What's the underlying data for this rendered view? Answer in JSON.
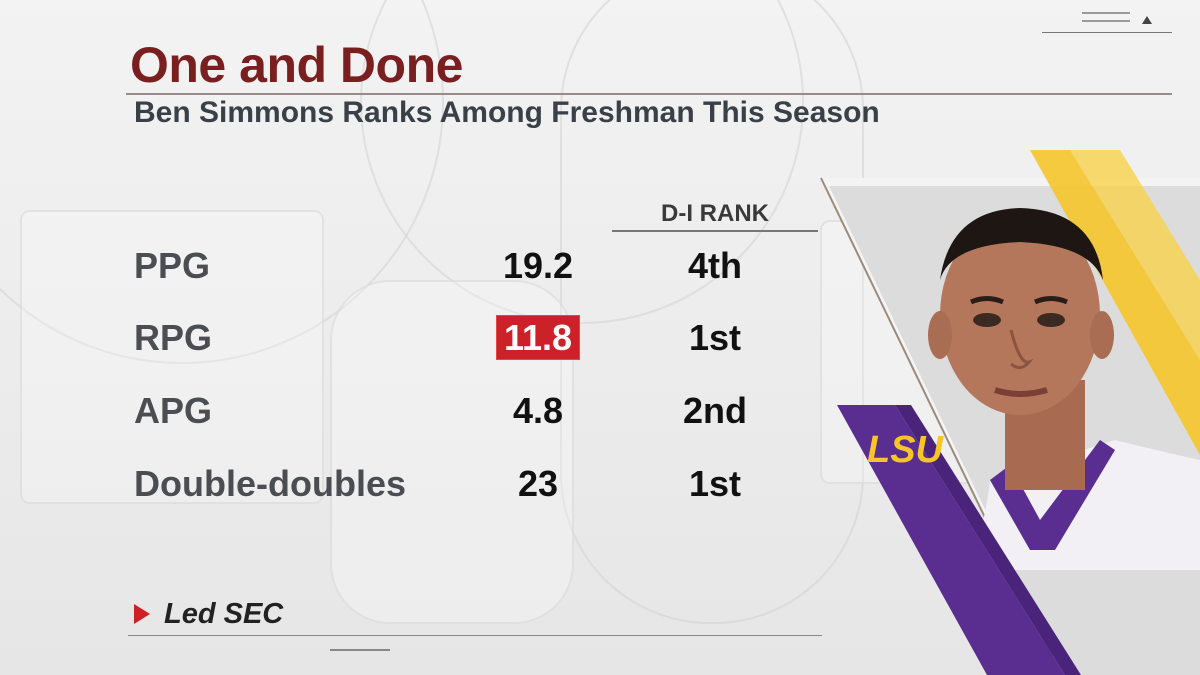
{
  "graphic": {
    "title": "One and Done",
    "subtitle": "Ben Simmons Ranks Among Freshman This Season"
  },
  "table": {
    "rank_header": "D-I RANK",
    "rows": [
      {
        "label": "PPG",
        "value": "19.2",
        "rank": "4th",
        "highlighted": false
      },
      {
        "label": "RPG",
        "value": "11.8",
        "rank": "1st",
        "highlighted": true
      },
      {
        "label": "APG",
        "value": "4.8",
        "rank": "2nd",
        "highlighted": false
      },
      {
        "label": "Double-doubles",
        "value": "23",
        "rank": "1st",
        "highlighted": false
      }
    ]
  },
  "legend": {
    "text": "Led SEC",
    "marker_color": "#d11f26"
  },
  "logo": {
    "text": "LSU",
    "primary_color": "#5a2d91",
    "secondary_color": "#f5c52a"
  },
  "colors": {
    "title": "#7a1f1f",
    "subtitle": "#3a4048",
    "highlight": "#cc2128"
  }
}
